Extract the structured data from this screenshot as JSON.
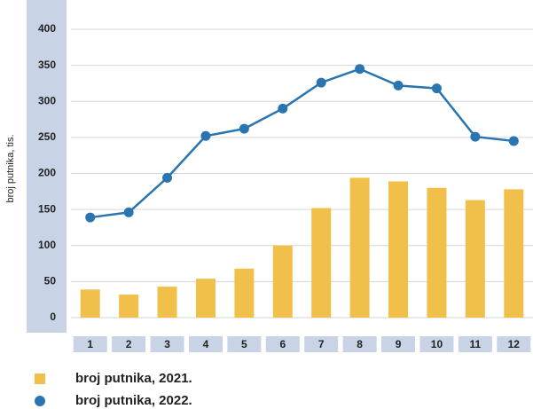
{
  "chart_data": {
    "type": "bar",
    "y_label": "broj putnika, tis.",
    "categories": [
      "1",
      "2",
      "3",
      "4",
      "5",
      "6",
      "7",
      "8",
      "9",
      "10",
      "11",
      "12"
    ],
    "series": [
      {
        "name": "broj putnika, 2021.",
        "type": "bar",
        "color": "#f0c04a",
        "values": [
          39,
          32,
          43,
          54,
          68,
          100,
          152,
          194,
          189,
          180,
          163,
          178
        ]
      },
      {
        "name": "broj putnika, 2022.",
        "type": "line",
        "color": "#2a75b0",
        "values": [
          139,
          146,
          194,
          252,
          262,
          290,
          326,
          345,
          322,
          318,
          251,
          245
        ]
      }
    ],
    "ylim": [
      0,
      400
    ],
    "yticks": [
      0,
      50,
      100,
      150,
      200,
      250,
      300,
      350,
      400
    ],
    "grid": true
  }
}
